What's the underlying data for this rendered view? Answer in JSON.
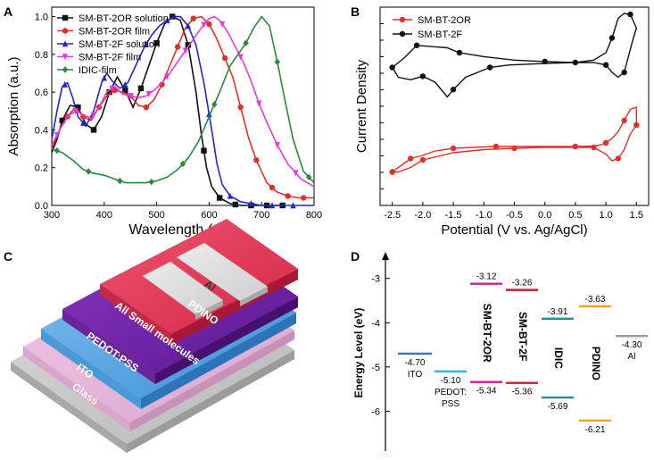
{
  "panels": {
    "A": "A",
    "B": "B",
    "C": "C",
    "D": "D"
  },
  "colors": {
    "black": "#111111",
    "red": "#e0302a",
    "blue": "#1f28c8",
    "magenta": "#e03cdc",
    "green": "#2a8a3a",
    "ito": "#3a6fd6",
    "pedot": "#3ab2e0",
    "ior": "#cc1f8a",
    "ifl": "#c81f38",
    "idic": "#2a8a84",
    "pdino": "#f0a020",
    "al": "#999999"
  },
  "chart_data": [
    {
      "type": "line",
      "panel": "A",
      "xlabel": "Wavelength (nm)",
      "ylabel": "Absorption (a.u.)",
      "xlim": [
        300,
        800
      ],
      "ylim": [
        0,
        1.05
      ],
      "xticks": [
        "300",
        "400",
        "500",
        "600",
        "700",
        "800"
      ],
      "yticks": [
        "0.0",
        "0.2",
        "0.4",
        "0.6",
        "0.8",
        "1.0"
      ],
      "legend_position": "top-left",
      "series": [
        {
          "name": "SM-BT-2OR solution",
          "color": "black",
          "marker": "square",
          "x": [
            300,
            310,
            320,
            335,
            350,
            365,
            380,
            395,
            410,
            425,
            440,
            455,
            470,
            485,
            500,
            515,
            530,
            545,
            560,
            575,
            585,
            595,
            605,
            620,
            640,
            660,
            680,
            700,
            720,
            740
          ],
          "y": [
            0.28,
            0.35,
            0.45,
            0.53,
            0.52,
            0.43,
            0.4,
            0.47,
            0.6,
            0.68,
            0.61,
            0.52,
            0.62,
            0.74,
            0.86,
            0.96,
            1.0,
            0.98,
            0.85,
            0.6,
            0.38,
            0.2,
            0.1,
            0.04,
            0.01,
            0.0,
            0.0,
            0.0,
            0.0,
            0.0
          ],
          "marked_x": [
            320,
            350,
            380,
            410,
            440,
            470,
            500,
            530,
            560,
            590,
            620,
            650,
            680,
            710,
            740
          ]
        },
        {
          "name": "SM-BT-2OR film",
          "color": "red",
          "marker": "circle",
          "x": [
            300,
            315,
            330,
            345,
            360,
            375,
            390,
            405,
            420,
            435,
            450,
            465,
            480,
            495,
            510,
            525,
            540,
            555,
            570,
            585,
            600,
            615,
            630,
            645,
            660,
            675,
            690,
            710,
            730,
            750,
            770,
            800
          ],
          "y": [
            0.3,
            0.4,
            0.47,
            0.52,
            0.47,
            0.45,
            0.52,
            0.58,
            0.61,
            0.6,
            0.58,
            0.53,
            0.52,
            0.56,
            0.64,
            0.74,
            0.84,
            0.94,
            0.99,
            1.0,
            0.96,
            0.88,
            0.78,
            0.68,
            0.52,
            0.36,
            0.24,
            0.12,
            0.07,
            0.05,
            0.04,
            0.04
          ],
          "marked_x": [
            330,
            360,
            390,
            420,
            450,
            480,
            510,
            540,
            570,
            600,
            630,
            660,
            690,
            720,
            750,
            780
          ]
        },
        {
          "name": "SM-BT-2F solution",
          "color": "blue",
          "marker": "triangle",
          "x": [
            300,
            310,
            320,
            330,
            340,
            350,
            365,
            380,
            395,
            405,
            415,
            430,
            445,
            460,
            475,
            490,
            505,
            520,
            535,
            545,
            560,
            575,
            590,
            605,
            615,
            625,
            640,
            660,
            680,
            700,
            730,
            760,
            800
          ],
          "y": [
            0.35,
            0.5,
            0.63,
            0.65,
            0.57,
            0.47,
            0.42,
            0.5,
            0.65,
            0.7,
            0.66,
            0.62,
            0.65,
            0.74,
            0.83,
            0.9,
            0.95,
            0.98,
            1.0,
            1.0,
            0.95,
            0.85,
            0.65,
            0.4,
            0.22,
            0.11,
            0.05,
            0.02,
            0.01,
            0.0,
            0.0,
            0.0,
            0.0
          ],
          "marked_x": [
            325,
            360,
            400,
            440,
            480,
            520,
            560,
            600,
            640,
            680,
            720,
            760
          ]
        },
        {
          "name": "SM-BT-2F film",
          "color": "magenta",
          "marker": "triangle-down",
          "x": [
            300,
            315,
            330,
            345,
            360,
            375,
            390,
            405,
            420,
            435,
            450,
            465,
            480,
            495,
            510,
            525,
            540,
            555,
            570,
            585,
            600,
            610,
            620,
            635,
            650,
            665,
            680,
            695,
            710,
            730,
            750,
            775,
            800
          ],
          "y": [
            0.32,
            0.4,
            0.47,
            0.5,
            0.48,
            0.46,
            0.52,
            0.6,
            0.63,
            0.59,
            0.58,
            0.57,
            0.58,
            0.61,
            0.65,
            0.7,
            0.76,
            0.82,
            0.88,
            0.94,
            0.99,
            1.0,
            0.98,
            0.92,
            0.84,
            0.76,
            0.66,
            0.54,
            0.44,
            0.32,
            0.22,
            0.14,
            0.1
          ],
          "marked_x": [
            310,
            345,
            380,
            415,
            450,
            485,
            520,
            555,
            590,
            625,
            660,
            695,
            730,
            765
          ]
        },
        {
          "name": "IDIC-film",
          "color": "green",
          "marker": "diamond",
          "x": [
            300,
            320,
            340,
            360,
            380,
            400,
            420,
            440,
            460,
            480,
            500,
            520,
            540,
            560,
            580,
            600,
            620,
            640,
            655,
            670,
            685,
            700,
            715,
            730,
            745,
            760,
            780,
            800
          ],
          "y": [
            0.3,
            0.28,
            0.24,
            0.19,
            0.17,
            0.16,
            0.14,
            0.12,
            0.12,
            0.12,
            0.13,
            0.15,
            0.19,
            0.25,
            0.34,
            0.47,
            0.6,
            0.74,
            0.8,
            0.86,
            0.94,
            1.0,
            0.95,
            0.76,
            0.55,
            0.35,
            0.18,
            0.12
          ],
          "marked_x": [
            310,
            370,
            430,
            490,
            550,
            610,
            670,
            730,
            790
          ]
        }
      ]
    },
    {
      "type": "line",
      "panel": "B",
      "xlabel": "Potential (V vs. Ag/AgCl)",
      "ylabel": "Current Density",
      "xlim": [
        -2.7,
        1.7
      ],
      "xticks": [
        "-2.5",
        "-2.0",
        "-1.5",
        "-1.0",
        "-0.5",
        "0.0",
        "0.5",
        "1.0",
        "1.5"
      ],
      "legend_position": "top-left",
      "series": [
        {
          "name": "SM-BT-2OR",
          "color": "red",
          "marker": "circle",
          "x": [
            -2.5,
            -2.4,
            -2.3,
            -2.2,
            -2.0,
            -1.8,
            -1.5,
            -1.2,
            -1.0,
            -0.8,
            -0.5,
            0.0,
            0.5,
            0.8,
            0.9,
            1.0,
            1.1,
            1.2,
            1.3,
            1.4,
            1.5,
            1.5,
            1.4,
            1.3,
            1.2,
            1.1,
            1.0,
            0.8,
            0.5,
            0.0,
            -0.5,
            -1.0,
            -1.5,
            -2.0,
            -2.2,
            -2.4,
            -2.5
          ],
          "y": [
            -0.55,
            -0.45,
            -0.35,
            -0.25,
            -0.18,
            -0.08,
            -0.02,
            0.0,
            0.01,
            0.02,
            0.02,
            0.02,
            0.02,
            0.03,
            0.05,
            0.1,
            0.2,
            0.35,
            0.6,
            0.85,
            0.9,
            0.5,
            0.3,
            -0.05,
            -0.25,
            -0.3,
            -0.15,
            0.0,
            0.0,
            0.0,
            -0.02,
            -0.05,
            -0.12,
            -0.28,
            -0.45,
            -0.55,
            -0.55
          ]
        },
        {
          "name": "SM-BT-2F",
          "color": "black",
          "marker": "circle",
          "x": [
            -2.5,
            -2.4,
            -2.2,
            -2.0,
            -1.8,
            -1.6,
            -1.5,
            -1.3,
            -1.1,
            -0.9,
            -0.6,
            0.0,
            0.5,
            0.8,
            1.0,
            1.1,
            1.2,
            1.3,
            1.4,
            1.5,
            1.45,
            1.3,
            1.2,
            1.1,
            1.0,
            0.8,
            0.5,
            0.0,
            -0.5,
            -1.0,
            -1.4,
            -1.6,
            -1.8,
            -2.1,
            -2.3,
            -2.5
          ],
          "y": [
            -0.1,
            -0.3,
            -0.35,
            -0.28,
            -0.4,
            -0.7,
            -0.55,
            -0.3,
            -0.2,
            -0.1,
            -0.05,
            -0.02,
            0.0,
            0.05,
            0.2,
            0.5,
            0.9,
            1.0,
            0.98,
            0.7,
            0.5,
            -0.2,
            -0.3,
            -0.2,
            -0.05,
            0.0,
            0.0,
            0.02,
            0.05,
            0.12,
            0.2,
            0.3,
            0.32,
            0.35,
            0.1,
            -0.1
          ]
        }
      ]
    },
    {
      "type": "diagram",
      "panel": "D",
      "ylabel": "Energy Level (eV)",
      "ylim": [
        -6.9,
        -2.4
      ],
      "yticks": [
        "-3",
        "-4",
        "-5",
        "-6"
      ],
      "materials": [
        {
          "name": "ITO",
          "label": "ITO",
          "levels": [
            {
              "value": -4.7,
              "text": "-4.70"
            }
          ],
          "color": "ito"
        },
        {
          "name": "PEDOT:PSS",
          "label_line1": "PEDOT:",
          "label_line2": "PSS",
          "levels": [
            {
              "value": -5.1,
              "text": "-5.10"
            }
          ],
          "color": "pedot"
        },
        {
          "name": "SM-BT-2OR",
          "label": "SM-BT-2OR",
          "levels": [
            {
              "value": -3.12,
              "text": "-3.12"
            },
            {
              "value": -5.34,
              "text": "-5.34"
            }
          ],
          "color": "ior"
        },
        {
          "name": "SM-BT-2F",
          "label": "SM-BT-2F",
          "levels": [
            {
              "value": -3.26,
              "text": "-3.26"
            },
            {
              "value": -5.36,
              "text": "-5.36"
            }
          ],
          "color": "ifl"
        },
        {
          "name": "IDIC",
          "label": "IDIC",
          "levels": [
            {
              "value": -3.91,
              "text": "-3.91"
            },
            {
              "value": -5.69,
              "text": "-5.69"
            }
          ],
          "color": "idic"
        },
        {
          "name": "PDINO",
          "label": "PDINO",
          "levels": [
            {
              "value": -3.63,
              "text": "-3.63"
            },
            {
              "value": -6.21,
              "text": "-6.21"
            }
          ],
          "color": "pdino"
        },
        {
          "name": "Al",
          "label": "Al",
          "levels": [
            {
              "value": -4.3,
              "text": "-4.30"
            }
          ],
          "color": "al"
        }
      ]
    }
  ],
  "device_stack": {
    "layers": [
      "Al",
      "PDINO",
      "All Small molecules",
      "PEDOT:PSS",
      "ITO",
      "Glass"
    ]
  }
}
